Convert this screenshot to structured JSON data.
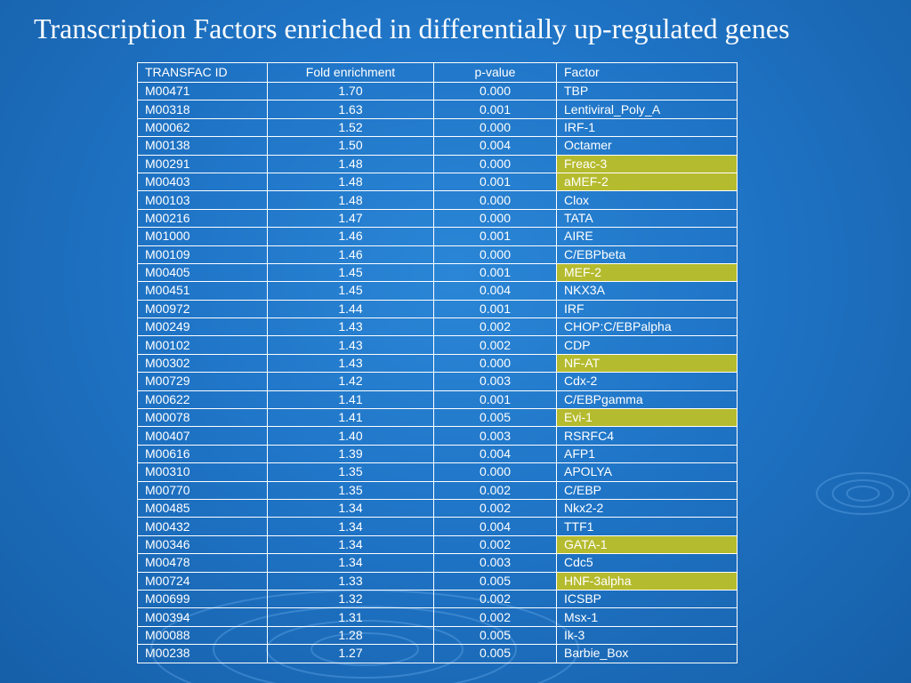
{
  "slide": {
    "title": "Transcription Factors enriched in differentially up-regulated genes"
  },
  "colors": {
    "background": "#1f74c6",
    "highlight": "#b5bb2e",
    "text": "#ffffff"
  },
  "table": {
    "headers": [
      "TRANSFAC ID",
      "Fold enrichment",
      "p-value",
      "Factor"
    ],
    "rows": [
      {
        "id": "M00471",
        "fold": "1.70",
        "p": "0.000",
        "factor": "TBP",
        "highlight": false
      },
      {
        "id": "M00318",
        "fold": "1.63",
        "p": "0.001",
        "factor": "Lentiviral_Poly_A",
        "highlight": false
      },
      {
        "id": "M00062",
        "fold": "1.52",
        "p": "0.000",
        "factor": "IRF-1",
        "highlight": false
      },
      {
        "id": "M00138",
        "fold": "1.50",
        "p": "0.004",
        "factor": "Octamer",
        "highlight": false
      },
      {
        "id": "M00291",
        "fold": "1.48",
        "p": "0.000",
        "factor": "Freac-3",
        "highlight": true
      },
      {
        "id": "M00403",
        "fold": "1.48",
        "p": "0.001",
        "factor": "aMEF-2",
        "highlight": true
      },
      {
        "id": "M00103",
        "fold": "1.48",
        "p": "0.000",
        "factor": "Clox",
        "highlight": false
      },
      {
        "id": "M00216",
        "fold": "1.47",
        "p": "0.000",
        "factor": "TATA",
        "highlight": false
      },
      {
        "id": "M01000",
        "fold": "1.46",
        "p": "0.001",
        "factor": "AIRE",
        "highlight": false
      },
      {
        "id": "M00109",
        "fold": "1.46",
        "p": "0.000",
        "factor": "C/EBPbeta",
        "highlight": false
      },
      {
        "id": "M00405",
        "fold": "1.45",
        "p": "0.001",
        "factor": "MEF-2",
        "highlight": true
      },
      {
        "id": "M00451",
        "fold": "1.45",
        "p": "0.004",
        "factor": "NKX3A",
        "highlight": false
      },
      {
        "id": "M00972",
        "fold": "1.44",
        "p": "0.001",
        "factor": "IRF",
        "highlight": false
      },
      {
        "id": "M00249",
        "fold": "1.43",
        "p": "0.002",
        "factor": "CHOP:C/EBPalpha",
        "highlight": false
      },
      {
        "id": "M00102",
        "fold": "1.43",
        "p": "0.002",
        "factor": "CDP",
        "highlight": false
      },
      {
        "id": "M00302",
        "fold": "1.43",
        "p": "0.000",
        "factor": "NF-AT",
        "highlight": true
      },
      {
        "id": "M00729",
        "fold": "1.42",
        "p": "0.003",
        "factor": "Cdx-2",
        "highlight": false
      },
      {
        "id": "M00622",
        "fold": "1.41",
        "p": "0.001",
        "factor": "C/EBPgamma",
        "highlight": false
      },
      {
        "id": "M00078",
        "fold": "1.41",
        "p": "0.005",
        "factor": "Evi-1",
        "highlight": true
      },
      {
        "id": "M00407",
        "fold": "1.40",
        "p": "0.003",
        "factor": "RSRFC4",
        "highlight": false
      },
      {
        "id": "M00616",
        "fold": "1.39",
        "p": "0.004",
        "factor": "AFP1",
        "highlight": false
      },
      {
        "id": "M00310",
        "fold": "1.35",
        "p": "0.000",
        "factor": "APOLYA",
        "highlight": false
      },
      {
        "id": "M00770",
        "fold": "1.35",
        "p": "0.002",
        "factor": "C/EBP",
        "highlight": false
      },
      {
        "id": "M00485",
        "fold": "1.34",
        "p": "0.002",
        "factor": "Nkx2-2",
        "highlight": false
      },
      {
        "id": "M00432",
        "fold": "1.34",
        "p": "0.004",
        "factor": "TTF1",
        "highlight": false
      },
      {
        "id": "M00346",
        "fold": "1.34",
        "p": "0.002",
        "factor": "GATA-1",
        "highlight": true
      },
      {
        "id": "M00478",
        "fold": "1.34",
        "p": "0.003",
        "factor": "Cdc5",
        "highlight": false
      },
      {
        "id": "M00724",
        "fold": "1.33",
        "p": "0.005",
        "factor": "HNF-3alpha",
        "highlight": true
      },
      {
        "id": "M00699",
        "fold": "1.32",
        "p": "0.002",
        "factor": "ICSBP",
        "highlight": false
      },
      {
        "id": "M00394",
        "fold": "1.31",
        "p": "0.002",
        "factor": "Msx-1",
        "highlight": false
      },
      {
        "id": "M00088",
        "fold": "1.28",
        "p": "0.005",
        "factor": "Ik-3",
        "highlight": false
      },
      {
        "id": "M00238",
        "fold": "1.27",
        "p": "0.005",
        "factor": "Barbie_Box",
        "highlight": false
      }
    ]
  }
}
